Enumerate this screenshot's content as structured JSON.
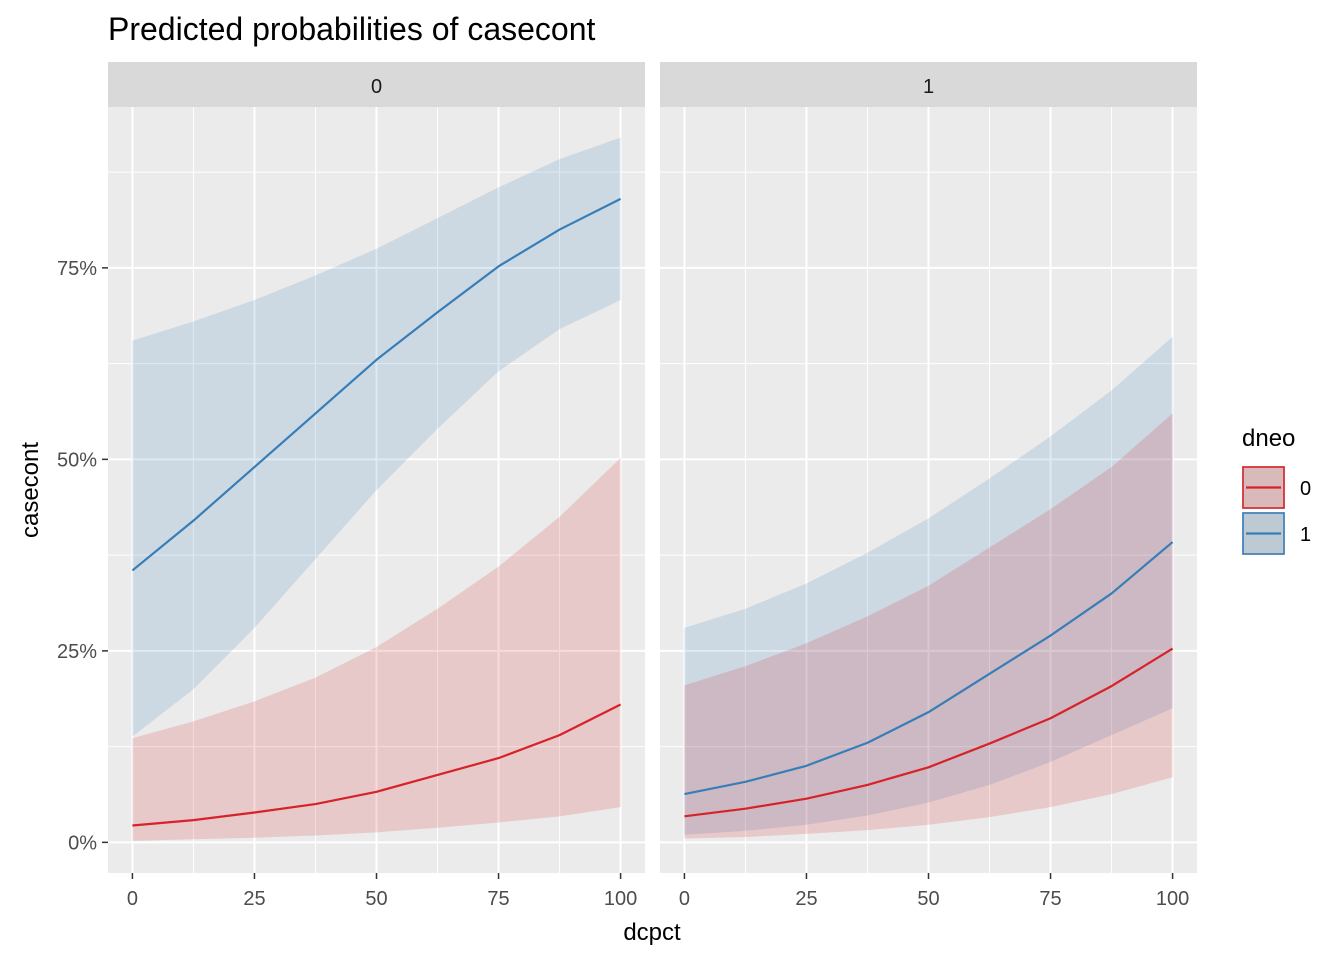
{
  "chart_data": {
    "type": "line",
    "title": "Predicted probabilities of casecont",
    "xlabel": "dcpct",
    "ylabel": "casecont",
    "xlim": [
      -5,
      105
    ],
    "ylim": [
      -4,
      96
    ],
    "x_ticks": [
      0,
      25,
      50,
      75,
      100
    ],
    "x_tick_labels": [
      "0",
      "25",
      "50",
      "75",
      "100"
    ],
    "y_ticks": [
      0,
      25,
      50,
      75
    ],
    "y_tick_labels": [
      "0%",
      "25%",
      "50%",
      "75%"
    ],
    "grid": true,
    "legend": {
      "title": "dneo",
      "position": "right",
      "entries": [
        {
          "key": "0",
          "label": "0",
          "color": "#d62228"
        },
        {
          "key": "1",
          "label": "1",
          "color": "#377eb8"
        }
      ]
    },
    "x": [
      0,
      12.5,
      25,
      37.5,
      50,
      62.5,
      75,
      87.5,
      100
    ],
    "panels": [
      {
        "strip": "0",
        "series": [
          {
            "key": "0",
            "color": "#d62228",
            "values": [
              2.2,
              2.9,
              3.9,
              5.0,
              6.6,
              8.8,
              11.0,
              14.0,
              18.0
            ],
            "lower": [
              0.2,
              0.4,
              0.6,
              0.9,
              1.3,
              1.9,
              2.6,
              3.4,
              4.6
            ],
            "upper": [
              13.6,
              15.8,
              18.4,
              21.5,
              25.5,
              30.5,
              36.0,
              42.5,
              50.2
            ]
          },
          {
            "key": "1",
            "color": "#377eb8",
            "values": [
              35.5,
              42.0,
              49.0,
              56.0,
              63.0,
              69.2,
              75.2,
              80.0,
              84.0
            ],
            "lower": [
              13.8,
              20.0,
              28.0,
              37.0,
              46.0,
              54.0,
              61.5,
              67.0,
              70.8
            ],
            "upper": [
              65.5,
              68.0,
              70.8,
              74.0,
              77.5,
              81.5,
              85.5,
              89.2,
              92.0
            ]
          }
        ]
      },
      {
        "strip": "1",
        "series": [
          {
            "key": "1",
            "color": "#377eb8",
            "values": [
              6.3,
              7.9,
              10.0,
              13.0,
              17.0,
              22.0,
              27.0,
              32.5,
              39.2
            ],
            "lower": [
              1.0,
              1.5,
              2.3,
              3.5,
              5.2,
              7.5,
              10.5,
              14.0,
              17.5
            ],
            "upper": [
              28.0,
              30.5,
              33.8,
              37.8,
              42.3,
              47.5,
              53.0,
              59.0,
              66.0
            ]
          },
          {
            "key": "0",
            "color": "#d62228",
            "values": [
              3.4,
              4.4,
              5.7,
              7.5,
              9.8,
              12.9,
              16.2,
              20.4,
              25.3
            ],
            "lower": [
              0.5,
              0.7,
              1.1,
              1.6,
              2.3,
              3.3,
              4.6,
              6.3,
              8.5
            ],
            "upper": [
              20.5,
              23.0,
              26.0,
              29.5,
              33.5,
              38.5,
              43.5,
              49.0,
              56.0
            ]
          }
        ]
      }
    ]
  }
}
